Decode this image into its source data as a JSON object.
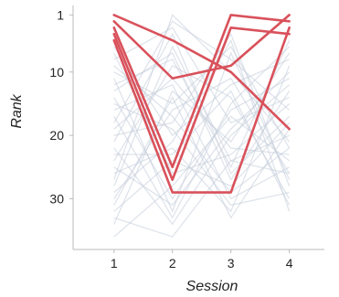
{
  "chart_data": {
    "type": "line",
    "xlabel": "Session",
    "ylabel": "Rank",
    "x": [
      1,
      2,
      3,
      4
    ],
    "xlim": [
      0.3,
      4.6
    ],
    "ylim": [
      38,
      -0.5
    ],
    "xticks": [
      "1",
      "2",
      "3",
      "4"
    ],
    "yticks": [
      "1",
      "10",
      "20",
      "30"
    ],
    "ytick_values": [
      1,
      10,
      20,
      30
    ],
    "colors": {
      "highlight": "#d9515b",
      "background": "#c5cedb",
      "axis": "#bbbbbb"
    },
    "highlighted_series": [
      {
        "values": [
          1,
          5,
          10,
          19
        ]
      },
      {
        "values": [
          2,
          11,
          9,
          1
        ]
      },
      {
        "values": [
          3,
          25,
          1,
          2
        ]
      },
      {
        "values": [
          4,
          27,
          3,
          4
        ]
      },
      {
        "values": [
          5,
          29,
          29,
          3
        ]
      }
    ],
    "background_series": [
      {
        "values": [
          6,
          20,
          12,
          8
        ]
      },
      {
        "values": [
          8,
          3,
          18,
          14
        ]
      },
      {
        "values": [
          10,
          15,
          6,
          22
        ]
      },
      {
        "values": [
          12,
          8,
          25,
          5
        ]
      },
      {
        "values": [
          14,
          30,
          16,
          11
        ]
      },
      {
        "values": [
          16,
          12,
          30,
          25
        ]
      },
      {
        "values": [
          18,
          2,
          8,
          16
        ]
      },
      {
        "values": [
          20,
          18,
          4,
          28
        ]
      },
      {
        "values": [
          22,
          34,
          20,
          12
        ]
      },
      {
        "values": [
          24,
          9,
          14,
          30
        ]
      },
      {
        "values": [
          26,
          22,
          32,
          9
        ]
      },
      {
        "values": [
          28,
          6,
          24,
          20
        ]
      },
      {
        "values": [
          30,
          16,
          11,
          26
        ]
      },
      {
        "values": [
          32,
          24,
          28,
          18
        ]
      },
      {
        "values": [
          34,
          13,
          21,
          7
        ]
      },
      {
        "values": [
          36,
          28,
          17,
          24
        ]
      },
      {
        "values": [
          7,
          26,
          23,
          15
        ]
      },
      {
        "values": [
          11,
          32,
          7,
          27
        ]
      },
      {
        "values": [
          13,
          7,
          27,
          13
        ]
      },
      {
        "values": [
          15,
          19,
          31,
          29
        ]
      },
      {
        "values": [
          17,
          33,
          15,
          6
        ]
      },
      {
        "values": [
          19,
          11,
          22,
          23
        ]
      },
      {
        "values": [
          21,
          4,
          26,
          17
        ]
      },
      {
        "values": [
          23,
          23,
          13,
          31
        ]
      },
      {
        "values": [
          25,
          31,
          19,
          10
        ]
      },
      {
        "values": [
          27,
          1,
          10,
          21
        ]
      },
      {
        "values": [
          29,
          21,
          5,
          32
        ]
      },
      {
        "values": [
          31,
          14,
          33,
          19
        ]
      },
      {
        "values": [
          33,
          36,
          24,
          26
        ]
      },
      {
        "values": [
          9,
          17,
          29,
          22
        ]
      }
    ]
  }
}
